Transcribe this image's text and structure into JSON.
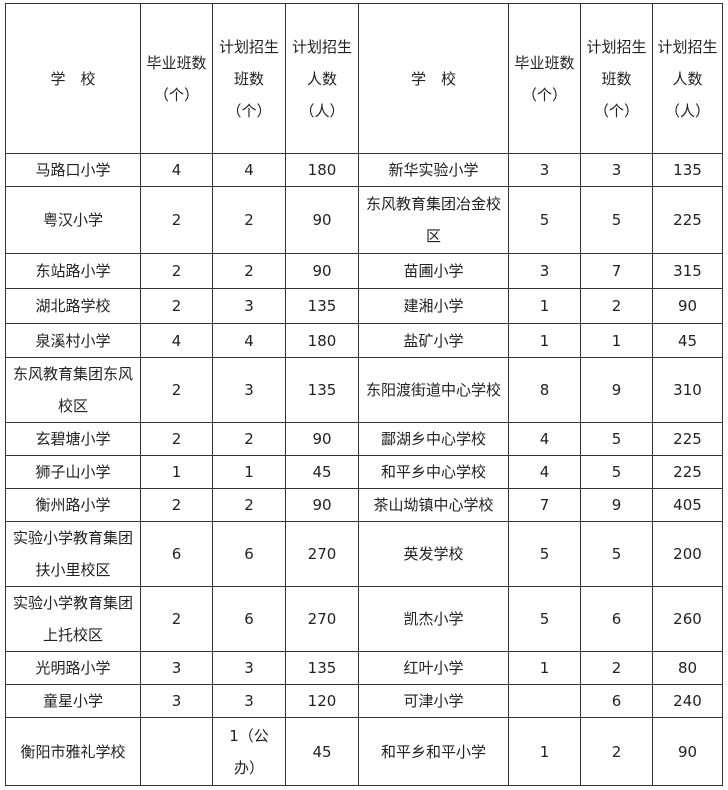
{
  "headers": [
    "学　校",
    "毕业班数\n（个）",
    "计划招生\n班数\n（个）",
    "计划招生\n人数\n（人）",
    "学　校",
    "毕业班数\n（个）",
    "计划招生\n班数\n（个）",
    "计划招生\n人数\n（人）"
  ],
  "rows": [
    [
      "马路口小学",
      "4",
      "4",
      "180",
      "新华实验小学",
      "3",
      "3",
      "135"
    ],
    [
      "粤汉小学",
      "2",
      "2",
      "90",
      "东风教育集团冶金校\n区",
      "5",
      "5",
      "225"
    ],
    [
      "东站路小学",
      "2",
      "2",
      "90",
      "苗圃小学",
      "3",
      "7",
      "315"
    ],
    [
      "湖北路学校",
      "2",
      "3",
      "135",
      "建湘小学",
      "1",
      "2",
      "90"
    ],
    [
      "泉溪村小学",
      "4",
      "4",
      "180",
      "盐矿小学",
      "1",
      "1",
      "45"
    ],
    [
      "东风教育集团东风\n校区",
      "2",
      "3",
      "135",
      "东阳渡街道中心学校",
      "8",
      "9",
      "310"
    ],
    [
      "玄碧塘小学",
      "2",
      "2",
      "90",
      "酃湖乡中心学校",
      "4",
      "5",
      "225"
    ],
    [
      "狮子山小学",
      "1",
      "1",
      "45",
      "和平乡中心学校",
      "4",
      "5",
      "225"
    ],
    [
      "衡州路小学",
      "2",
      "2",
      "90",
      "茶山坳镇中心学校",
      "7",
      "9",
      "405"
    ],
    [
      "实验小学教育集团\n扶小里校区",
      "6",
      "6",
      "270",
      "英发学校",
      "5",
      "5",
      "200"
    ],
    [
      "实验小学教育集团\n上托校区",
      "2",
      "6",
      "270",
      "凯杰小学",
      "5",
      "6",
      "260"
    ],
    [
      "光明路小学",
      "3",
      "3",
      "135",
      "红叶小学",
      "1",
      "2",
      "80"
    ],
    [
      "童星小学",
      "3",
      "3",
      "120",
      "可津小学",
      "",
      "6",
      "240"
    ],
    [
      "衡阳市雅礼学校",
      "",
      "1（公\n办）",
      "45",
      "和平乡和平小学",
      "1",
      "2",
      "90"
    ]
  ]
}
